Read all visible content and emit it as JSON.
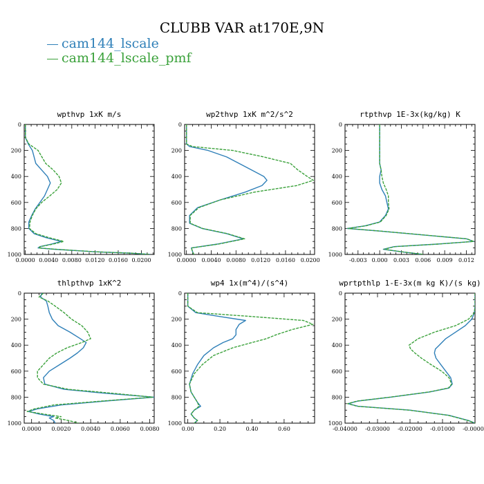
{
  "title": "CLUBB VAR at170E,9N",
  "legend": [
    {
      "name": "cam144_lscale",
      "color": "#2e7fb8"
    },
    {
      "name": "cam144_lscale_pmf",
      "color": "#3aa13a"
    }
  ],
  "chart_data": [
    {
      "type": "line",
      "title": "wpthvp   1xK m/s",
      "xlim": [
        -0.0002,
        0.0222
      ],
      "ylim": [
        1000,
        0
      ],
      "xticks": [
        "0.0000",
        "0.0040",
        "0.0080",
        "0.0120",
        "0.0160",
        "0.0200"
      ],
      "xtick_values": [
        0.0,
        0.004,
        0.008,
        0.012,
        0.016,
        0.02
      ],
      "yticks": [
        "0",
        "200",
        "400",
        "600",
        "800",
        "1000"
      ],
      "y": [
        0,
        100,
        150,
        200,
        300,
        350,
        400,
        450,
        500,
        550,
        600,
        650,
        700,
        750,
        800,
        840,
        870,
        900,
        920,
        940,
        950,
        960,
        980,
        990,
        1000
      ],
      "series": [
        {
          "name": "cam144_lscale",
          "x": [
            0.0,
            0.0,
            0.0005,
            0.0012,
            0.0018,
            0.0028,
            0.0038,
            0.0043,
            0.0038,
            0.0033,
            0.0025,
            0.0017,
            0.0011,
            0.0006,
            0.0006,
            0.0015,
            0.0035,
            0.0062,
            0.0045,
            0.0025,
            0.0022,
            0.005,
            0.012,
            0.018,
            0.0215
          ]
        },
        {
          "name": "cam144_lscale_pmf",
          "x": [
            0.0,
            0.0,
            0.0006,
            0.0022,
            0.0035,
            0.0048,
            0.0058,
            0.0062,
            0.0055,
            0.0042,
            0.0028,
            0.0018,
            0.0012,
            0.0008,
            0.0007,
            0.0018,
            0.004,
            0.0066,
            0.0048,
            0.0026,
            0.0023,
            0.0052,
            0.0122,
            0.0182,
            0.0215
          ]
        }
      ]
    },
    {
      "type": "line",
      "title": "wp2thvp   1xK m^2/s^2",
      "xlim": [
        -0.0003,
        0.0207
      ],
      "ylim": [
        1000,
        0
      ],
      "xticks": [
        "0.0000",
        "0.0040",
        "0.0080",
        "0.0120",
        "0.0160",
        "0.0200"
      ],
      "xtick_values": [
        0.0,
        0.004,
        0.008,
        0.012,
        0.016,
        0.02
      ],
      "yticks": [
        "0",
        "200",
        "400",
        "600",
        "800",
        "1000"
      ],
      "y": [
        0,
        150,
        170,
        200,
        250,
        300,
        350,
        400,
        430,
        470,
        520,
        580,
        640,
        700,
        760,
        800,
        840,
        880,
        920,
        950,
        980,
        1000
      ],
      "series": [
        {
          "name": "cam144_lscale",
          "x": [
            0.0,
            0.0,
            0.0005,
            0.0035,
            0.0065,
            0.0085,
            0.0105,
            0.0125,
            0.013,
            0.0122,
            0.0095,
            0.0055,
            0.0018,
            0.0005,
            0.0005,
            0.0025,
            0.0065,
            0.0092,
            0.005,
            0.0008,
            0.001,
            0.0012
          ]
        },
        {
          "name": "cam144_lscale_pmf",
          "x": [
            0.0,
            0.0,
            0.001,
            0.0075,
            0.0125,
            0.0168,
            0.018,
            0.0195,
            0.0205,
            0.0178,
            0.011,
            0.0055,
            0.002,
            0.0006,
            0.0006,
            0.0026,
            0.0066,
            0.0094,
            0.0052,
            0.0008,
            0.001,
            0.0012
          ]
        }
      ]
    },
    {
      "type": "line",
      "title": "rtpthvp   1E-3x(kg/kg) K",
      "xlim": [
        -0.0048,
        0.0132
      ],
      "ylim": [
        1000,
        0
      ],
      "xticks": [
        "-0.003",
        "0.000",
        "0.003",
        "0.006",
        "0.009",
        "0.012"
      ],
      "xtick_values": [
        -0.003,
        0.0,
        0.003,
        0.006,
        0.009,
        0.012
      ],
      "yticks": [
        "0",
        "200",
        "400",
        "600",
        "800",
        "1000"
      ],
      "y": [
        0,
        100,
        200,
        300,
        350,
        400,
        450,
        500,
        550,
        600,
        650,
        700,
        750,
        780,
        800,
        820,
        850,
        880,
        900,
        920,
        940,
        960,
        980,
        1000
      ],
      "series": [
        {
          "name": "cam144_lscale",
          "x": [
            0.0,
            0.0,
            0.0,
            0.0,
            0.0002,
            0.0,
            0.0,
            0.0003,
            0.0008,
            0.001,
            0.0012,
            0.0008,
            0.0,
            -0.002,
            -0.0045,
            0.0,
            0.006,
            0.012,
            0.013,
            0.008,
            0.002,
            0.0005,
            0.003,
            0.006
          ]
        },
        {
          "name": "cam144_lscale_pmf",
          "x": [
            0.0,
            0.0,
            0.0,
            0.0,
            0.0002,
            0.0003,
            0.0005,
            0.0009,
            0.0012,
            0.0012,
            0.0013,
            0.0009,
            0.0001,
            -0.0019,
            -0.0044,
            0.0001,
            0.0061,
            0.0121,
            0.013,
            0.0081,
            0.0021,
            0.0006,
            0.0031,
            0.0061
          ]
        }
      ]
    },
    {
      "type": "line",
      "title": "thlpthvp   1xK^2",
      "xlim": [
        -0.0005,
        0.0083
      ],
      "ylim": [
        1000,
        0
      ],
      "xticks": [
        "0.0000",
        "0.0020",
        "0.0040",
        "0.0060",
        "0.0080"
      ],
      "xtick_values": [
        0.0,
        0.002,
        0.004,
        0.006,
        0.008
      ],
      "yticks": [
        "0",
        "200",
        "400",
        "600",
        "800",
        "1000"
      ],
      "y": [
        0,
        30,
        60,
        100,
        150,
        200,
        250,
        300,
        350,
        380,
        420,
        460,
        500,
        550,
        600,
        650,
        700,
        740,
        770,
        800,
        830,
        860,
        890,
        910,
        930,
        950,
        960,
        980,
        1000
      ],
      "series": [
        {
          "name": "cam144_lscale",
          "x": [
            0.0007,
            0.0006,
            0.001,
            0.0011,
            0.0012,
            0.0014,
            0.0018,
            0.0026,
            0.0033,
            0.0037,
            0.0035,
            0.0031,
            0.0026,
            0.0019,
            0.0012,
            0.0008,
            0.0009,
            0.0022,
            0.005,
            0.0083,
            0.005,
            0.002,
            0.0004,
            -0.0002,
            0.0005,
            0.0015,
            0.0012,
            0.0015,
            0.0016
          ]
        },
        {
          "name": "cam144_lscale_pmf",
          "x": [
            0.0008,
            0.0005,
            0.0011,
            0.0016,
            0.0022,
            0.0027,
            0.0034,
            0.0038,
            0.004,
            0.0034,
            0.0024,
            0.0017,
            0.0012,
            0.0008,
            0.0004,
            0.0004,
            0.0008,
            0.0025,
            0.0055,
            0.0082,
            0.0048,
            0.0015,
            0.0002,
            -0.0003,
            0.0008,
            0.002,
            0.0016,
            0.0025,
            0.0032
          ]
        }
      ]
    },
    {
      "type": "line",
      "title": "wp4   1x(m^4)/(s^4)",
      "xlim": [
        -0.02,
        0.79
      ],
      "ylim": [
        1000,
        0
      ],
      "xticks": [
        "0.00",
        "0.20",
        "0.40",
        "0.60"
      ],
      "xtick_values": [
        0.0,
        0.2,
        0.4,
        0.6
      ],
      "yticks": [
        "0",
        "200",
        "400",
        "600",
        "800",
        "1000"
      ],
      "y": [
        0,
        100,
        150,
        180,
        210,
        240,
        280,
        320,
        350,
        380,
        420,
        480,
        550,
        620,
        700,
        760,
        800,
        840,
        870,
        900,
        930,
        960,
        980,
        1000
      ],
      "series": [
        {
          "name": "cam144_lscale",
          "x": [
            0.0,
            0.0,
            0.05,
            0.2,
            0.36,
            0.32,
            0.3,
            0.3,
            0.28,
            0.22,
            0.16,
            0.1,
            0.06,
            0.03,
            0.01,
            0.02,
            0.04,
            0.06,
            0.08,
            0.04,
            0.02,
            0.04,
            0.06,
            0.04
          ]
        },
        {
          "name": "cam144_lscale_pmf",
          "x": [
            0.0,
            0.0,
            0.06,
            0.4,
            0.72,
            0.78,
            0.65,
            0.55,
            0.49,
            0.4,
            0.28,
            0.16,
            0.09,
            0.04,
            0.01,
            0.02,
            0.04,
            0.06,
            0.07,
            0.04,
            0.02,
            0.04,
            0.06,
            0.04
          ]
        }
      ]
    },
    {
      "type": "line",
      "title": "wprtpthlp   1-E-3x(m kg K)/(s kg)",
      "xlim": [
        -0.04,
        0.0
      ],
      "ylim": [
        1000,
        0
      ],
      "xticks": [
        "-0.04000",
        "-0.03000",
        "-0.02000",
        "-0.01000",
        "-0.00000"
      ],
      "xtick_values": [
        -0.04,
        -0.03,
        -0.02,
        -0.01,
        0.0
      ],
      "yticks": [
        "0",
        "200",
        "400",
        "600",
        "800",
        "1000"
      ],
      "y": [
        0,
        100,
        150,
        200,
        250,
        300,
        350,
        400,
        430,
        460,
        500,
        550,
        600,
        650,
        700,
        730,
        760,
        800,
        830,
        850,
        870,
        900,
        940,
        980,
        1000
      ],
      "series": [
        {
          "name": "cam144_lscale",
          "x": [
            0.0,
            0.0,
            -0.0002,
            -0.001,
            -0.003,
            -0.006,
            -0.009,
            -0.011,
            -0.0122,
            -0.0125,
            -0.012,
            -0.0105,
            -0.009,
            -0.0075,
            -0.007,
            -0.008,
            -0.014,
            -0.026,
            -0.036,
            -0.039,
            -0.036,
            -0.02,
            -0.008,
            -0.002,
            0.0
          ]
        },
        {
          "name": "cam144_lscale_pmf",
          "x": [
            0.0,
            0.0,
            -0.0002,
            -0.002,
            -0.006,
            -0.0125,
            -0.0175,
            -0.0203,
            -0.0198,
            -0.0185,
            -0.0165,
            -0.0135,
            -0.0103,
            -0.008,
            -0.0072,
            -0.0082,
            -0.0142,
            -0.0262,
            -0.0362,
            -0.0392,
            -0.0362,
            -0.0202,
            -0.0082,
            -0.0022,
            0.0
          ]
        }
      ]
    }
  ]
}
